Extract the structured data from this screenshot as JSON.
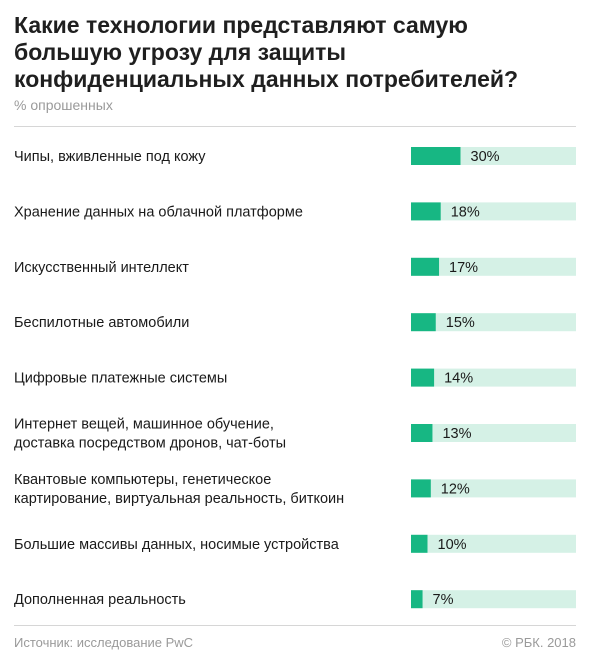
{
  "title": "Какие технологии представляют самую большую угрозу для защиты конфиденциальных данных потребителей?",
  "subtitle": "% опрошенных",
  "source": "Источник: исследование PwC",
  "copyright": "© РБК. 2018",
  "colors": {
    "bar": "#17b783",
    "track": "#d5f1e6",
    "label": "#1a1a1a",
    "muted": "#9a9a9a"
  },
  "chart_data": {
    "type": "bar",
    "orientation": "horizontal",
    "categories": [
      [
        "Чипы, вживленные под кожу"
      ],
      [
        "Хранение данных на облачной платформе"
      ],
      [
        "Искусственный интеллект"
      ],
      [
        "Беспилотные автомобили"
      ],
      [
        "Цифровые платежные системы"
      ],
      [
        "Интернет вещей, машинное обучение,",
        "доставка посредством дронов, чат-боты"
      ],
      [
        "Квантовые компьютеры, генетическое",
        "картирование, виртуальная реальность, биткоин"
      ],
      [
        "Большие массивы данных, носимые устройства"
      ],
      [
        "Дополненная реальность"
      ]
    ],
    "values": [
      30,
      18,
      17,
      15,
      14,
      13,
      12,
      10,
      7
    ],
    "value_labels": [
      "30%",
      "18%",
      "17%",
      "15%",
      "14%",
      "13%",
      "12%",
      "10%",
      "7%"
    ],
    "xlim": [
      0,
      100
    ],
    "unit": "%",
    "grid": false,
    "legend": false
  }
}
